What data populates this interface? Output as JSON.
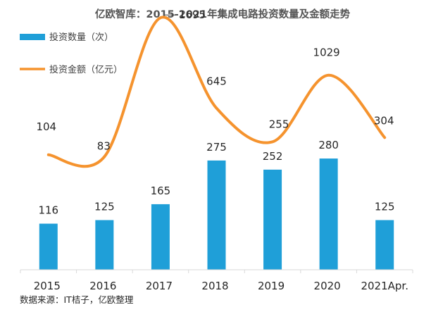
{
  "chart_data": {
    "type": "bar+line",
    "title": "亿欧智库：2015-2021年集成电路投资数量及金额走势",
    "categories": [
      "2015",
      "2016",
      "2017",
      "2018",
      "2019",
      "2020",
      "2021Apr."
    ],
    "series": [
      {
        "name": "投资数量（次）",
        "type": "bar",
        "color": "#1f9fd8",
        "values": [
          116,
          125,
          165,
          275,
          252,
          280,
          125
        ],
        "ylim": [
          0,
          500
        ]
      },
      {
        "name": "投资金额（亿元）",
        "type": "line",
        "color": "#f5932e",
        "smooth": true,
        "values": [
          104,
          83,
          1695,
          645,
          255,
          1029,
          304
        ],
        "ylim": [
          -1000,
          1900
        ]
      }
    ],
    "xlabel": "",
    "ylabel": "",
    "grid": false,
    "legend": "top-left",
    "source": "数据来源：IT桔子，亿欧整理"
  }
}
